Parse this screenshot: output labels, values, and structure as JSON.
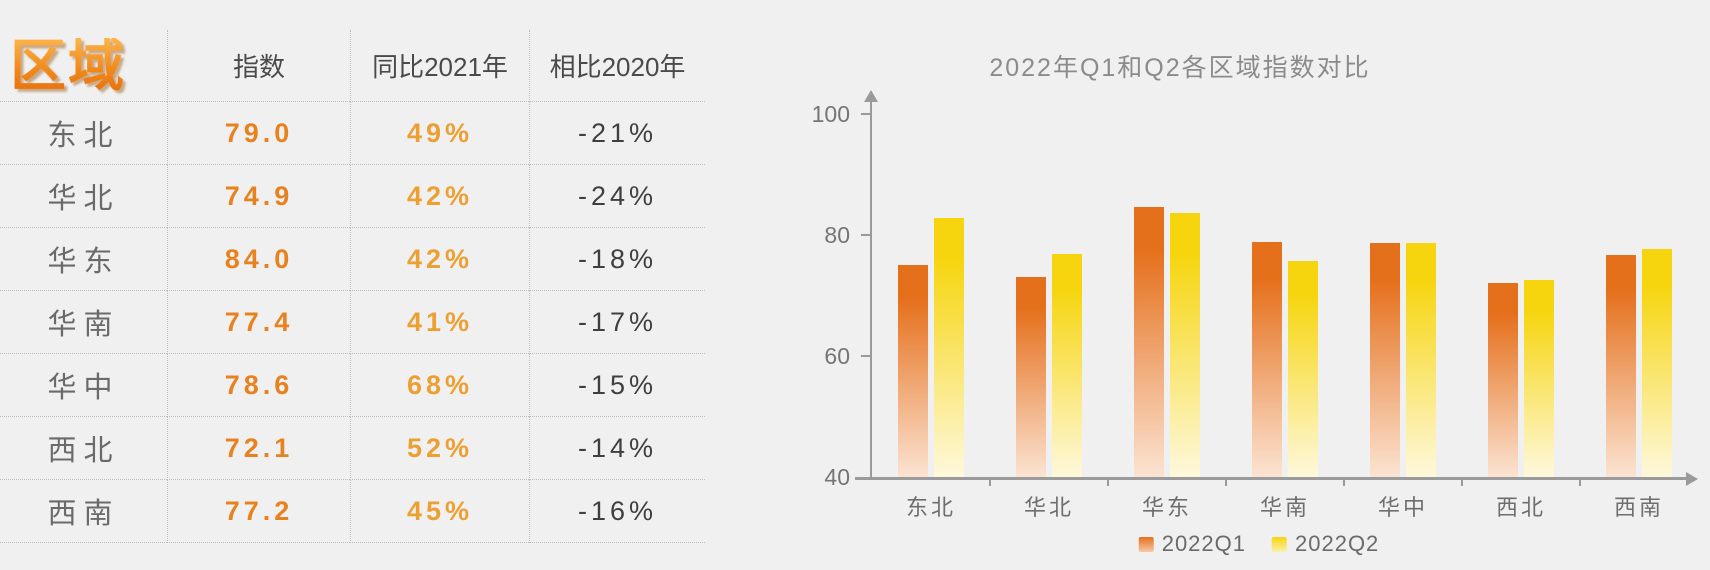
{
  "page": {
    "background": "#F0F0F1"
  },
  "table": {
    "title": "区域",
    "headers": [
      "指数",
      "同比2021年",
      "相比2020年"
    ],
    "rows": [
      {
        "region": "东北",
        "index": "79.0",
        "yoy_2021": "49%",
        "vs_2020": "-21%"
      },
      {
        "region": "华北",
        "index": "74.9",
        "yoy_2021": "42%",
        "vs_2020": "-24%"
      },
      {
        "region": "华东",
        "index": "84.0",
        "yoy_2021": "42%",
        "vs_2020": "-18%"
      },
      {
        "region": "华南",
        "index": "77.4",
        "yoy_2021": "41%",
        "vs_2020": "-17%"
      },
      {
        "region": "华中",
        "index": "78.6",
        "yoy_2021": "68%",
        "vs_2020": "-15%"
      },
      {
        "region": "西北",
        "index": "72.1",
        "yoy_2021": "52%",
        "vs_2020": "-14%"
      },
      {
        "region": "西南",
        "index": "77.2",
        "yoy_2021": "45%",
        "vs_2020": "-16%"
      }
    ],
    "colors": {
      "title_orange": "#F18A1B",
      "index_value": "#E8821E",
      "yoy_value": "#EDA032",
      "vs_value": "#3F3F3F",
      "region_name": "#6A6A6A",
      "header_text": "#4A4A4A"
    }
  },
  "chart_data": {
    "type": "bar",
    "title": "2022年Q1和Q2各区域指数对比",
    "categories": [
      "东北",
      "华北",
      "华东",
      "华南",
      "华中",
      "西北",
      "西南"
    ],
    "series": [
      {
        "name": "2022Q1",
        "values": [
          75.1,
          73.1,
          84.6,
          78.9,
          78.7,
          72.1,
          76.7
        ],
        "color": "#E5701C",
        "fade_color": "#FBE3D2"
      },
      {
        "name": "2022Q2",
        "values": [
          82.8,
          76.9,
          83.7,
          75.7,
          78.6,
          72.5,
          77.7
        ],
        "color": "#F6D50F",
        "fade_color": "#FEF8DC"
      }
    ],
    "xlabel": "",
    "ylabel": "",
    "ylim": [
      40,
      100
    ],
    "yticks": [
      40,
      60,
      80,
      100
    ],
    "grid": false,
    "legend_position": "bottom",
    "axis_color": "#9A9A9A",
    "tick_label_color": "#757575",
    "title_color": "#8B8B8B",
    "legend_text_color": "#6A6A6A"
  }
}
